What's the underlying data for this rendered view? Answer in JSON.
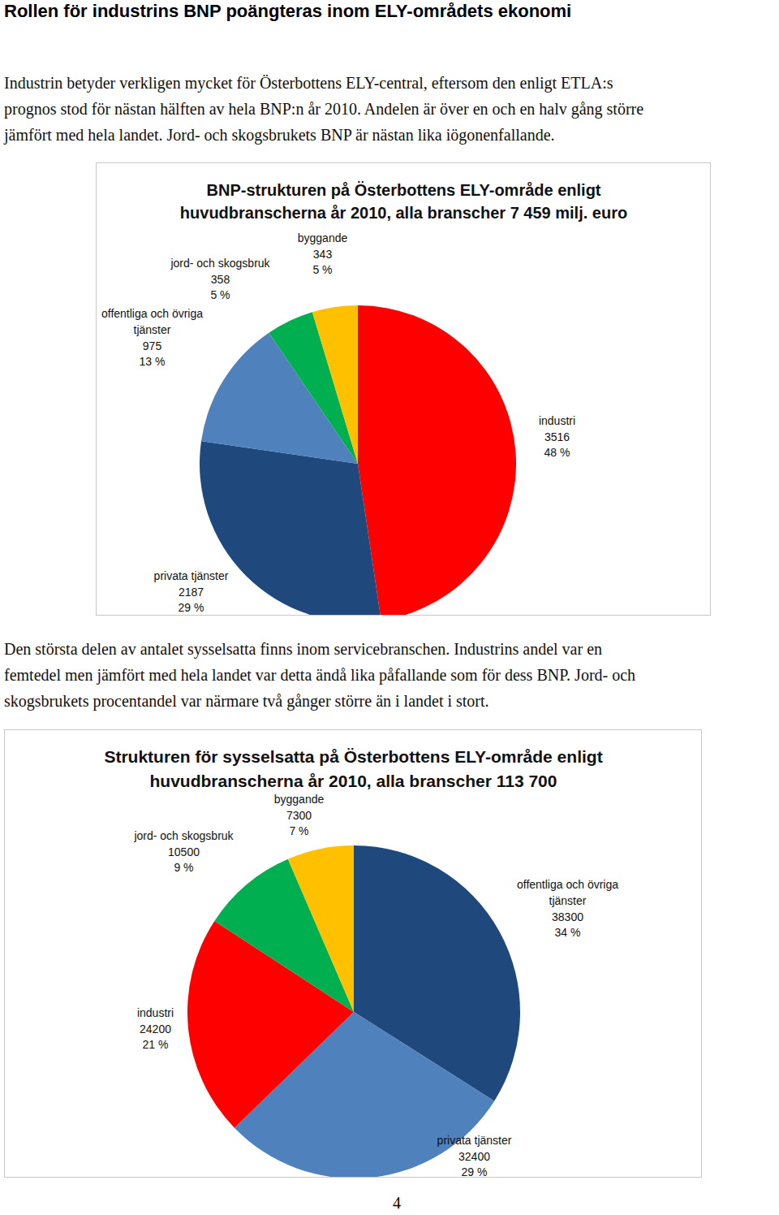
{
  "document": {
    "heading": "Rollen för industrins BNP poängteras inom ELY-områdets ekonomi",
    "paragraphs": [
      [
        "Industrin betyder verkligen mycket för Österbottens ELY-central, eftersom den enligt ETLA:s",
        "prognos stod för nästan hälften av hela BNP:n år 2010. Andelen är över en och en halv gång större",
        "jämfört med hela landet. Jord- och skogsbrukets BNP är nästan lika iögonenfallande."
      ],
      [
        "Den största delen av antalet sysselsatta finns inom servicebranschen. Industrins andel var en",
        "femtedel men jämfört med hela landet var detta ändå lika påfallande som för dess BNP. Jord- och",
        "skogsbrukets procentandel var närmare två gånger större än i landet i stort."
      ]
    ],
    "page_number": 4
  },
  "chart_data": [
    {
      "type": "pie",
      "title": "BNP-strukturen på Österbottens ELY-område enligt\nhuvudbranscherna år 2010, alla branscher 7 459 milj. euro",
      "categories": [
        "industri",
        "privata tjänster",
        "offentliga och övriga tjänster",
        "jord- och skogsbruk",
        "byggande"
      ],
      "values": [
        3516,
        2187,
        975,
        358,
        343
      ],
      "shares": [
        48,
        29,
        13,
        5,
        5
      ],
      "share_labels": [
        "48 %",
        "29 %",
        "13 %",
        "5 %",
        "5 %"
      ],
      "colors": [
        "#ff0000",
        "#1f497d",
        "#4f81bd",
        "#00b050",
        "#ffc000"
      ],
      "data_labels": true
    },
    {
      "type": "pie",
      "title": "Strukturen för sysselsatta på Österbottens ELY-område enligt\nhuvudbranscherna år 2010, alla branscher 113 700",
      "categories": [
        "offentliga och övriga tjänster",
        "privata tjänster",
        "industri",
        "jord- och skogsbruk",
        "byggande"
      ],
      "values": [
        38300,
        32400,
        24200,
        10500,
        7300
      ],
      "shares": [
        34,
        29,
        21,
        9,
        7
      ],
      "share_labels": [
        "34 %",
        "29 %",
        "21 %",
        "9 %",
        "7 %"
      ],
      "colors": [
        "#1f497d",
        "#4f81bd",
        "#ff0000",
        "#00b050",
        "#ffc000"
      ],
      "data_labels": true
    }
  ]
}
